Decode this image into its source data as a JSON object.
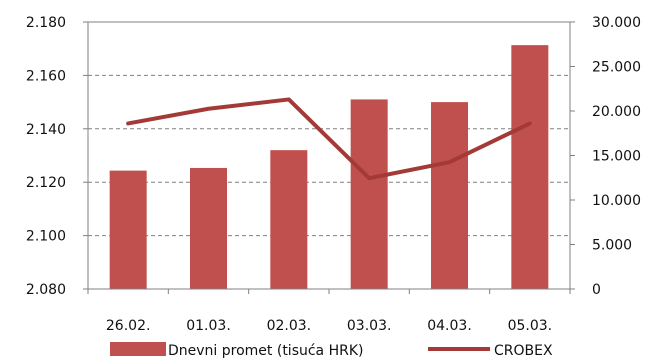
{
  "chart_data": {
    "type": "bar",
    "categories": [
      "26.02.",
      "01.03.",
      "02.03.",
      "03.03.",
      "04.03.",
      "05.03."
    ],
    "series": [
      {
        "name": "Dnevni promet (tisuća HRK)",
        "type": "bar",
        "axis": "right",
        "values": [
          13300,
          13600,
          15600,
          21300,
          21000,
          27400
        ],
        "color": "#c0504d"
      },
      {
        "name": "CROBEX",
        "type": "line",
        "axis": "left",
        "values": [
          2142.0,
          2147.5,
          2151.0,
          2121.5,
          2127.5,
          2142.0
        ],
        "color": "#a33a37"
      }
    ],
    "y_left": {
      "ylim": [
        2080,
        2180
      ],
      "ticks": [
        "2.080",
        "2.100",
        "2.120",
        "2.140",
        "2.160",
        "2.180"
      ]
    },
    "y_right": {
      "ylim": [
        0,
        30000
      ],
      "ticks": [
        "0",
        "5.000",
        "10.000",
        "15.000",
        "20.000",
        "25.000",
        "30.000"
      ]
    },
    "grid": "horizontal dashed",
    "legend": "bottom"
  }
}
